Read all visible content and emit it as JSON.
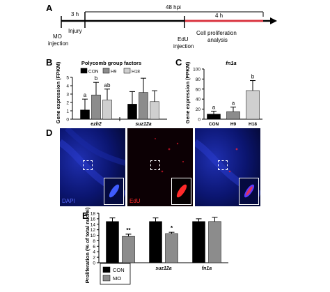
{
  "figure": {
    "panels": {
      "a": "A",
      "b": "B",
      "c": "C",
      "d": "D",
      "e": "E"
    },
    "timeline": {
      "label_3h": "3 h",
      "label_48hpi": "48 hpi",
      "label_4h": "4 h",
      "label_injury": "Injury",
      "label_mo_injection": [
        "MO",
        "injection"
      ],
      "label_edu_injection": [
        "EdU",
        "injection"
      ],
      "label_analysis": [
        "Cell proliferation",
        "analysis"
      ],
      "colors": {
        "axis": "#000000",
        "window": "#d9333f"
      }
    },
    "micrographs": {
      "labels": [
        "DAPI",
        "EdU",
        ""
      ],
      "label_colors": [
        "#5a6bff",
        "#ff2a2a",
        "#ffffff"
      ],
      "background_colors": [
        "#0a1466",
        "#120006",
        "#0f0f55"
      ]
    }
  },
  "chart_data": [
    {
      "id": "B",
      "type": "bar",
      "title": "Polycomb group factors",
      "ylabel": "Gene expression (FPKM)",
      "ylim": [
        0,
        5
      ],
      "yticks": [
        0,
        1,
        2,
        3,
        4,
        5
      ],
      "categories": [
        "ezh2",
        "suz12a"
      ],
      "series": [
        {
          "name": "CON",
          "color": "#000000",
          "values": [
            1.1,
            1.8
          ],
          "errors": [
            1.3,
            1.5
          ]
        },
        {
          "name": "H9",
          "color": "#8c8c8c",
          "values": [
            2.9,
            3.2
          ],
          "errors": [
            1.5,
            1.7
          ]
        },
        {
          "name": "H18",
          "color": "#cfcfcf",
          "values": [
            2.3,
            2.1
          ],
          "errors": [
            1.3,
            1.3
          ]
        }
      ],
      "annotations": [
        {
          "category": "ezh2",
          "series": "CON",
          "text": "a"
        },
        {
          "category": "ezh2",
          "series": "H9",
          "text": "b"
        },
        {
          "category": "ezh2",
          "series": "H18",
          "text": "ab"
        }
      ],
      "legend": "top"
    },
    {
      "id": "C",
      "type": "bar",
      "title": "fn1a",
      "ylabel": "Gene expression (FPKM)",
      "ylim": [
        0,
        100
      ],
      "yticks": [
        0,
        20,
        40,
        60,
        80,
        100
      ],
      "categories": [
        "CON",
        "H9",
        "H18"
      ],
      "colors": [
        "#000000",
        "#8c8c8c",
        "#cfcfcf"
      ],
      "values": [
        10,
        15,
        57
      ],
      "errors": [
        6,
        9,
        20
      ],
      "annotations": [
        "a",
        "a",
        "b"
      ]
    },
    {
      "id": "E",
      "type": "bar",
      "ylabel": "Proliferation (% of total nuclei)",
      "ylim": [
        0,
        18
      ],
      "yticks": [
        0,
        2,
        4,
        6,
        8,
        10,
        12,
        14,
        16,
        18
      ],
      "categories": [
        "ezh2",
        "suz12a",
        "fn1a"
      ],
      "series": [
        {
          "name": "CON",
          "color": "#000000",
          "values": [
            15.0,
            15.0,
            15.0
          ],
          "errors": [
            1.3,
            1.3,
            1.0
          ]
        },
        {
          "name": "MO",
          "color": "#8c8c8c",
          "values": [
            9.6,
            10.6,
            15.0
          ],
          "errors": [
            0.8,
            0.5,
            1.5
          ]
        }
      ],
      "annotations": [
        {
          "category": "ezh2",
          "series": "MO",
          "text": "**"
        },
        {
          "category": "suz12a",
          "series": "MO",
          "text": "*"
        }
      ],
      "legend": "bottom-left"
    }
  ]
}
